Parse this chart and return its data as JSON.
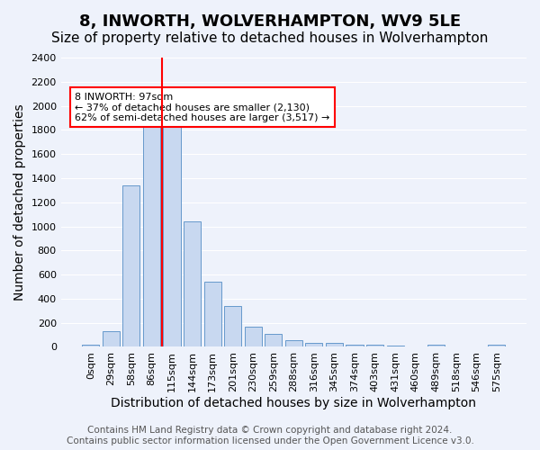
{
  "title": "8, INWORTH, WOLVERHAMPTON, WV9 5LE",
  "subtitle": "Size of property relative to detached houses in Wolverhampton",
  "xlabel": "Distribution of detached houses by size in Wolverhampton",
  "ylabel": "Number of detached properties",
  "bin_labels": [
    "0sqm",
    "29sqm",
    "58sqm",
    "86sqm",
    "115sqm",
    "144sqm",
    "173sqm",
    "201sqm",
    "230sqm",
    "259sqm",
    "288sqm",
    "316sqm",
    "345sqm",
    "374sqm",
    "403sqm",
    "431sqm",
    "460sqm",
    "489sqm",
    "518sqm",
    "546sqm",
    "575sqm"
  ],
  "bar_values": [
    20,
    130,
    1340,
    1900,
    1900,
    1040,
    540,
    340,
    165,
    110,
    55,
    35,
    30,
    20,
    15,
    10,
    0,
    15,
    0,
    0,
    20
  ],
  "bar_color": "#c8d8f0",
  "bar_edgecolor": "#6699cc",
  "vline_x": 3.5,
  "vline_color": "red",
  "annotation_text": "8 INWORTH: 97sqm\n← 37% of detached houses are smaller (2,130)\n62% of semi-detached houses are larger (3,517) →",
  "annotation_box_color": "white",
  "annotation_box_edgecolor": "red",
  "ylim": [
    0,
    2400
  ],
  "yticks": [
    0,
    200,
    400,
    600,
    800,
    1000,
    1200,
    1400,
    1600,
    1800,
    2000,
    2200,
    2400
  ],
  "footer_line1": "Contains HM Land Registry data © Crown copyright and database right 2024.",
  "footer_line2": "Contains public sector information licensed under the Open Government Licence v3.0.",
  "bg_color": "#eef2fb",
  "grid_color": "white",
  "title_fontsize": 13,
  "subtitle_fontsize": 11,
  "axis_label_fontsize": 10,
  "tick_fontsize": 8,
  "footer_fontsize": 7.5
}
